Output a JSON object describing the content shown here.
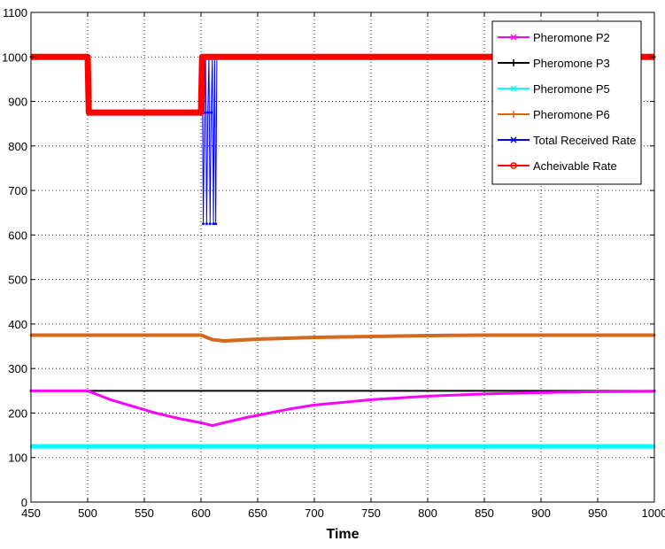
{
  "chart_data": {
    "type": "line",
    "title": "",
    "xlabel": "Time",
    "ylabel": "",
    "xlim": [
      450,
      1000
    ],
    "ylim": [
      0,
      1100
    ],
    "xticks": [
      450,
      500,
      550,
      600,
      650,
      700,
      750,
      800,
      850,
      900,
      950,
      1000
    ],
    "yticks": [
      0,
      100,
      200,
      300,
      400,
      500,
      600,
      700,
      800,
      900,
      1000,
      1100
    ],
    "grid": true,
    "legend_position": "top-right",
    "series": [
      {
        "name": "Pheromone P2",
        "color": "#ff00ff",
        "marker": "x",
        "x": [
          450,
          500,
          520,
          540,
          560,
          580,
          600,
          610,
          620,
          640,
          660,
          680,
          700,
          750,
          800,
          850,
          900,
          950,
          1000
        ],
        "y": [
          250,
          250,
          230,
          215,
          200,
          188,
          178,
          172,
          178,
          190,
          200,
          210,
          218,
          230,
          238,
          243,
          246,
          248,
          249
        ]
      },
      {
        "name": "Pheromone P3",
        "color": "#000000",
        "marker": "+",
        "x": [
          450,
          1000
        ],
        "y": [
          250,
          250
        ]
      },
      {
        "name": "Pheromone P5",
        "color": "#00ffff",
        "marker": "x",
        "x": [
          450,
          1000
        ],
        "y": [
          125,
          125
        ]
      },
      {
        "name": "Pheromone P6",
        "color": "#d2691e",
        "marker": "+",
        "x": [
          450,
          600,
          610,
          620,
          650,
          700,
          750,
          800,
          850,
          1000
        ],
        "y": [
          375,
          375,
          365,
          362,
          366,
          370,
          372,
          374,
          375,
          375
        ]
      },
      {
        "name": "Total Received Rate",
        "color": "#0000ff",
        "marker": "*",
        "x": [
          450,
          499,
          500,
          501,
          600,
          601,
          602,
          603,
          604,
          605,
          606,
          607,
          608,
          609,
          610,
          611,
          612,
          613,
          614,
          1000
        ],
        "y": [
          1000,
          1000,
          1000,
          875,
          875,
          1000,
          625,
          875,
          1000,
          625,
          875,
          1000,
          625,
          875,
          1000,
          625,
          1000,
          625,
          1000,
          1000
        ]
      },
      {
        "name": "Acheivable Rate",
        "color": "#ff0000",
        "marker": "o",
        "x": [
          450,
          499,
          500,
          501,
          599,
          600,
          601,
          1000
        ],
        "y": [
          1000,
          1000,
          1000,
          875,
          875,
          875,
          1000,
          1000
        ]
      }
    ]
  }
}
